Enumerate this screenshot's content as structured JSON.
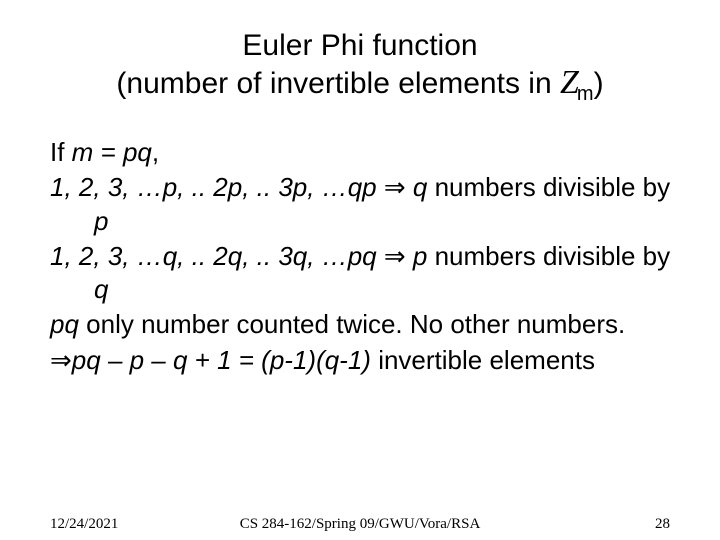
{
  "title": {
    "line1": "Euler Phi function",
    "line2_pre": "(number of invertible elements in ",
    "z_glyph": "Z",
    "z_sub": "m",
    "line2_post": ")"
  },
  "body": {
    "l1_pre": "If ",
    "l1_it": "m = pq",
    "l1_post": ",",
    "l2_it": "1, 2, 3, …p, .. 2p, .. 3p, …qp ",
    "l2_arrow": "⇒",
    "l2_it2": " q ",
    "l2_txt": "numbers divisible by ",
    "l2_it3": "p",
    "l3_it": "1, 2, 3, …q, .. 2q, .. 3q, …pq ",
    "l3_arrow": "⇒",
    "l3_it2": " p ",
    "l3_txt": "numbers divisible by ",
    "l3_it3": "q",
    "l4_it": "pq",
    "l4_txt": " only number counted twice. No other numbers.",
    "l5_arrow": "⇒",
    "l5_it": "pq – p – q + 1 = (p-1)(q-1)",
    "l5_txt": " invertible elements"
  },
  "footer": {
    "date": "12/24/2021",
    "course": "CS 284-162/Spring 09/GWU/Vora/RSA",
    "page": "28"
  }
}
